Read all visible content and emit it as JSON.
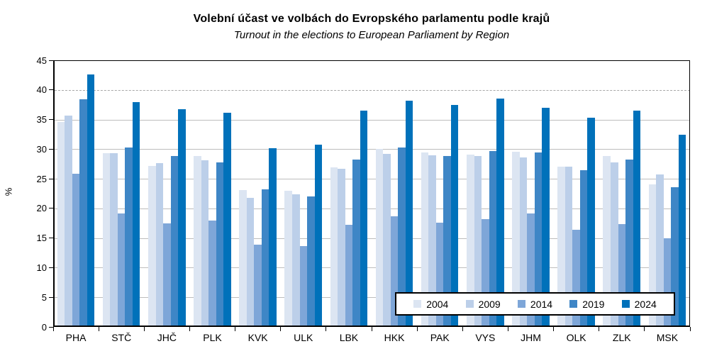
{
  "chart_data": {
    "type": "bar",
    "title": "Volební účast ve volbách do Evropského parlamentu podle krajů",
    "subtitle": "Turnout in the elections to European Parliament by Region",
    "ylabel": "%",
    "ylim": [
      0,
      45
    ],
    "ytick_step": 5,
    "grid": "horizontal",
    "dashed_gridline_at": 40,
    "legend_position": "inside-bottom-right",
    "categories": [
      "PHA",
      "STČ",
      "JHČ",
      "PLK",
      "KVK",
      "ULK",
      "LBK",
      "HKK",
      "PAK",
      "VYS",
      "JHM",
      "OLK",
      "ZLK",
      "MSK"
    ],
    "series": [
      {
        "name": "2004",
        "color": "#dce5f2",
        "values": [
          34.6,
          29.3,
          27.2,
          28.9,
          23.1,
          23.0,
          26.9,
          30.1,
          29.4,
          29.1,
          29.6,
          27.1,
          28.9,
          24.0
        ]
      },
      {
        "name": "2009",
        "color": "#bccfe9",
        "values": [
          35.7,
          29.3,
          27.6,
          28.1,
          21.8,
          22.4,
          26.7,
          29.2,
          29.0,
          28.9,
          28.6,
          27.0,
          27.8,
          25.7
        ]
      },
      {
        "name": "2014",
        "color": "#7ea6d8",
        "values": [
          25.8,
          19.1,
          17.5,
          17.9,
          13.9,
          13.7,
          17.2,
          18.7,
          17.6,
          18.2,
          19.1,
          16.4,
          17.4,
          15.0
        ]
      },
      {
        "name": "2019",
        "color": "#3e86c6",
        "values": [
          38.4,
          30.3,
          28.9,
          27.8,
          23.2,
          22.0,
          28.3,
          30.3,
          28.9,
          29.7,
          29.5,
          26.5,
          28.3,
          23.6
        ]
      },
      {
        "name": "2024",
        "color": "#0071ba",
        "values": [
          42.6,
          38.0,
          36.8,
          36.1,
          30.2,
          30.8,
          36.5,
          38.2,
          37.5,
          38.5,
          37.0,
          35.3,
          36.5,
          32.4
        ]
      }
    ]
  }
}
